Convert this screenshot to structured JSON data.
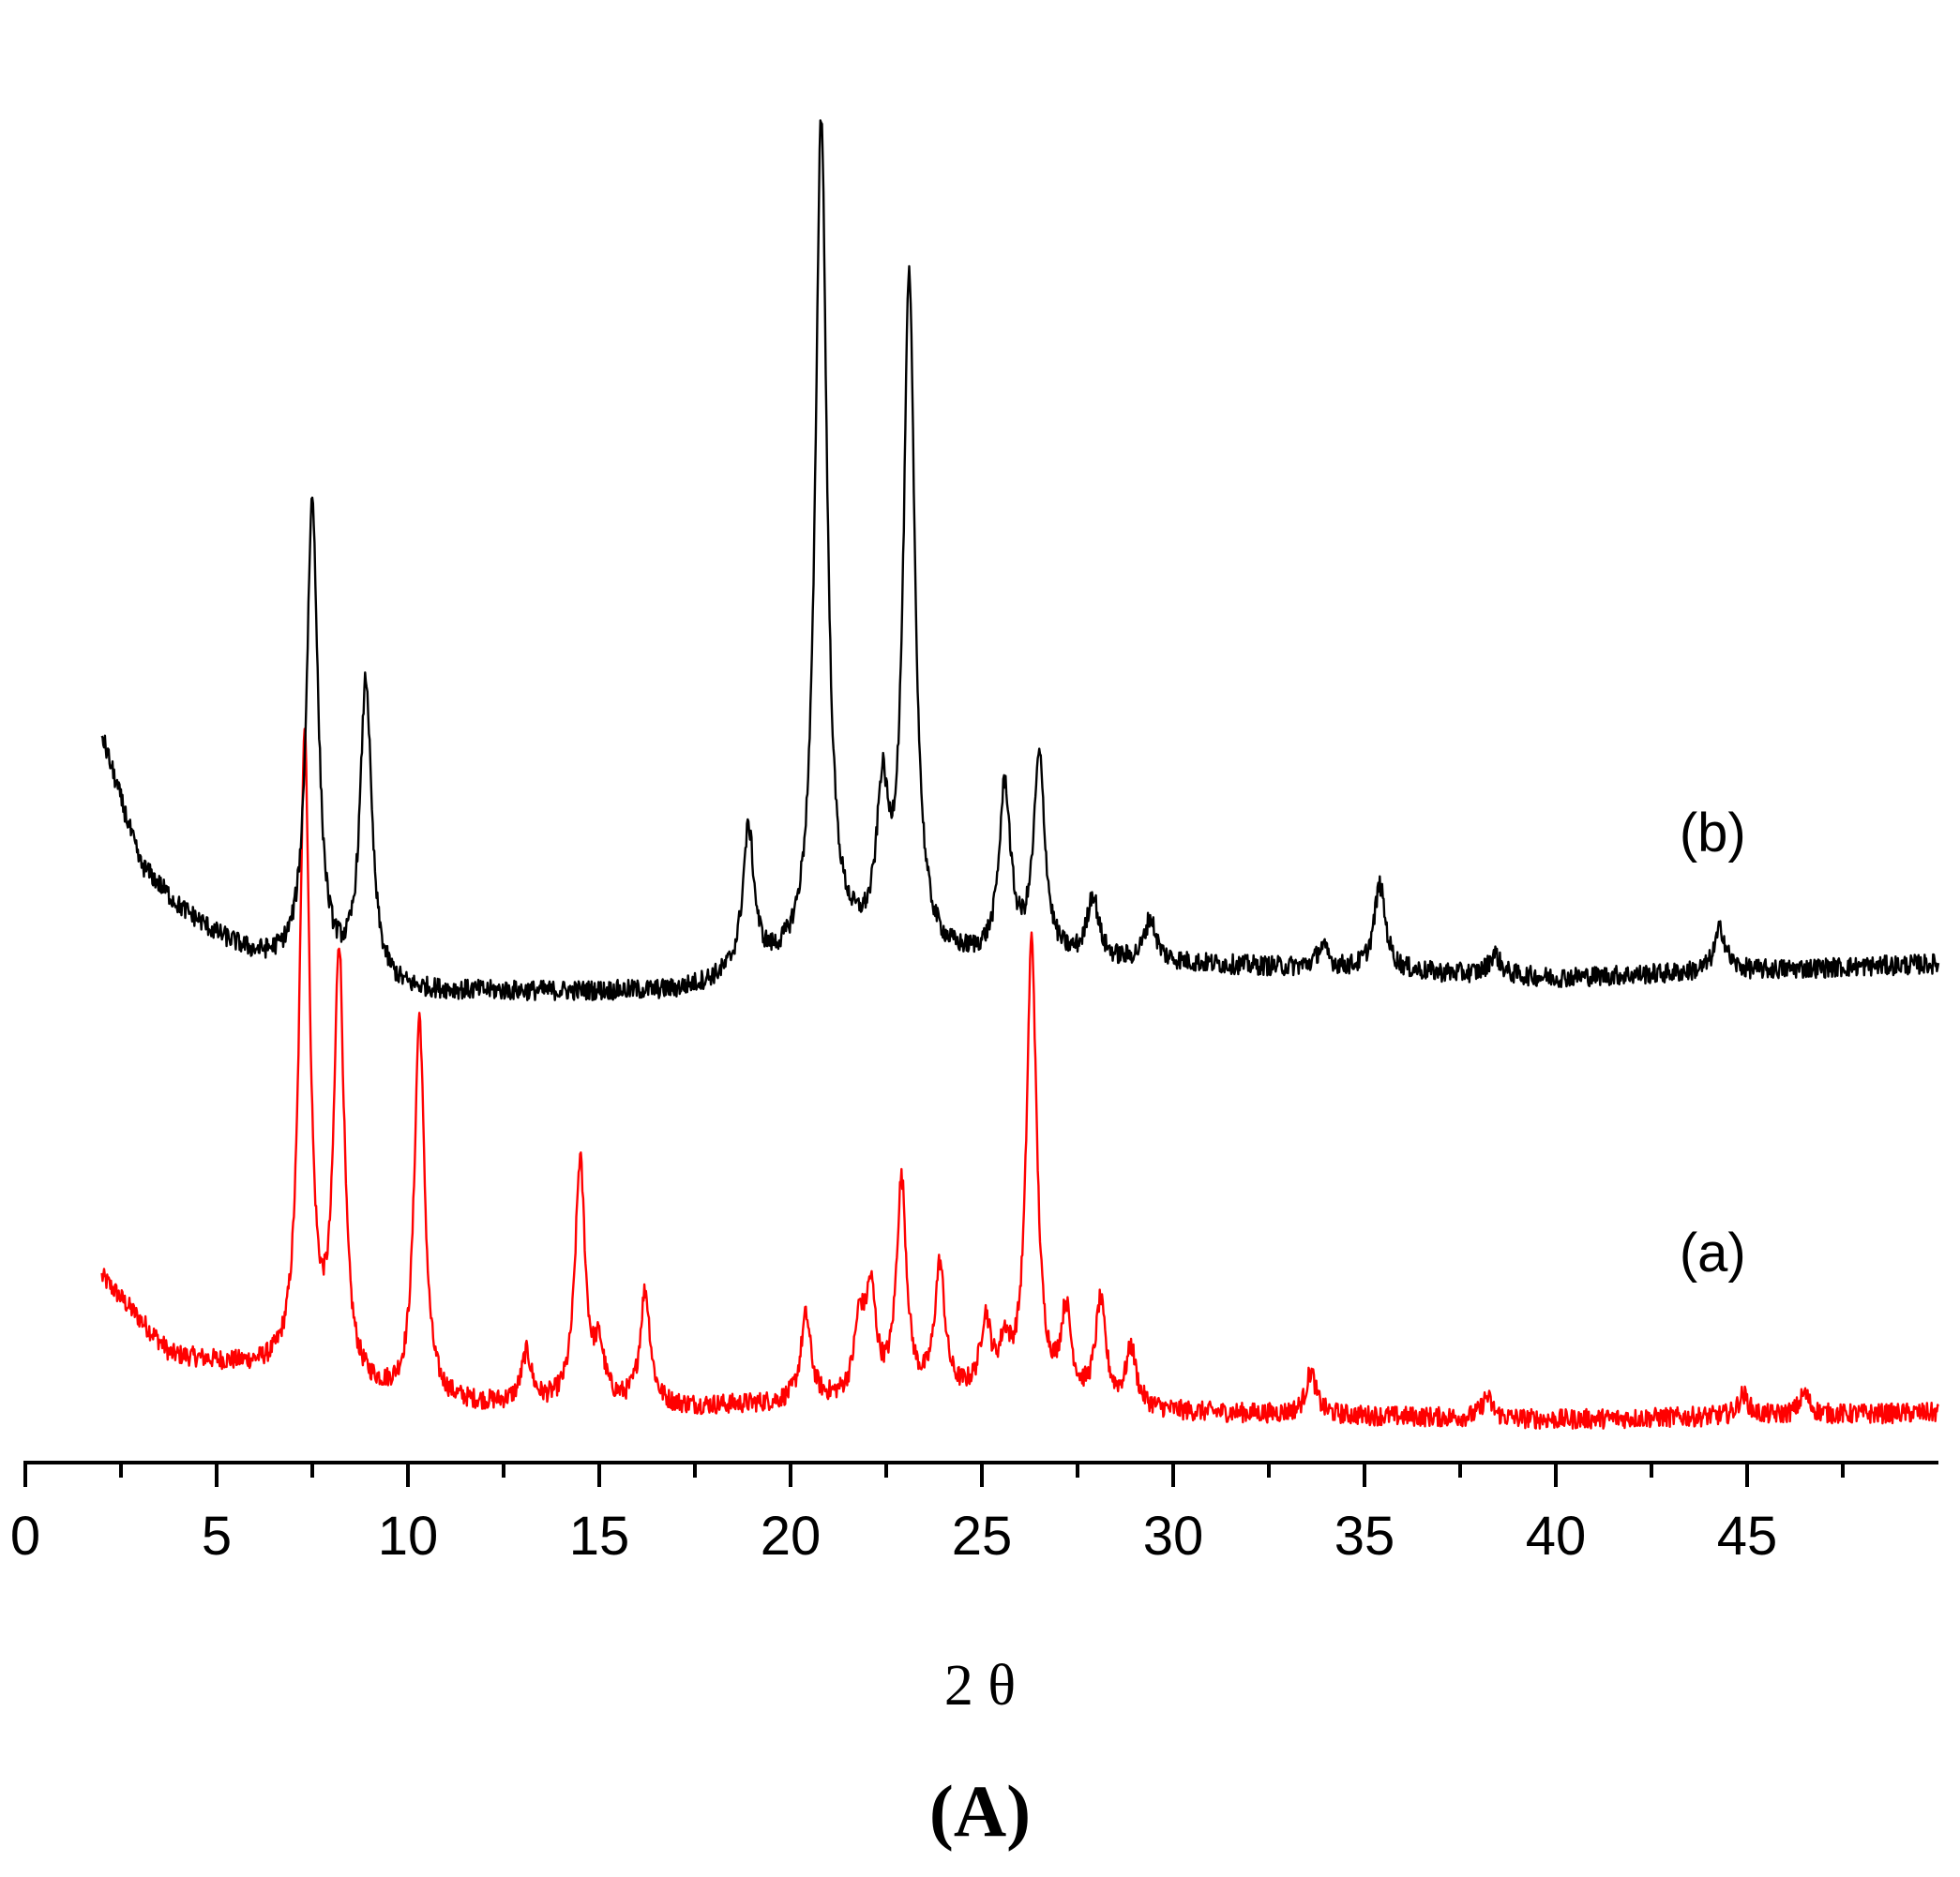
{
  "chart_data": {
    "type": "line",
    "title": "",
    "xlabel": "2 θ",
    "ylabel": "",
    "panel_label": "(A)",
    "xlim": [
      0,
      50
    ],
    "ylim": [
      0,
      100
    ],
    "x_ticks": [
      0,
      5,
      10,
      15,
      20,
      25,
      30,
      35,
      40,
      45
    ],
    "x_tick_labels": [
      "0",
      "5",
      "10",
      "15",
      "20",
      "25",
      "30",
      "35",
      "40",
      "45"
    ],
    "grid": false,
    "y_axis_visible": false,
    "series": [
      {
        "name": "(a)",
        "color": "#ff0000",
        "baseline": [
          [
            2,
            13
          ],
          [
            3.8,
            7.5
          ],
          [
            6,
            6.5
          ],
          [
            10,
            4
          ],
          [
            17,
            3.8
          ],
          [
            25,
            4.5
          ],
          [
            30,
            3.5
          ],
          [
            40,
            3
          ],
          [
            50,
            3.5
          ]
        ],
        "peaks": [
          [
            7.3,
            45
          ],
          [
            8.2,
            30
          ],
          [
            10.3,
            27
          ],
          [
            13.1,
            3.5
          ],
          [
            14.5,
            17
          ],
          [
            15.0,
            3.5
          ],
          [
            16.2,
            8
          ],
          [
            20.4,
            6
          ],
          [
            21.8,
            5
          ],
          [
            22.1,
            7
          ],
          [
            22.9,
            15
          ],
          [
            23.9,
            9
          ],
          [
            25.1,
            5
          ],
          [
            25.6,
            3
          ],
          [
            26.3,
            32
          ],
          [
            27.2,
            6
          ],
          [
            28.1,
            7
          ],
          [
            28.9,
            4
          ],
          [
            33.6,
            3
          ],
          [
            38.2,
            1.5
          ],
          [
            44.9,
            1.5
          ],
          [
            46.5,
            1.5
          ]
        ]
      },
      {
        "name": "(b)",
        "color": "#000000",
        "baseline": [
          [
            2,
            51
          ],
          [
            3,
            42
          ],
          [
            4,
            39
          ],
          [
            5,
            37
          ],
          [
            6,
            35.5
          ],
          [
            8,
            34
          ],
          [
            10,
            33
          ],
          [
            17,
            33
          ],
          [
            21.5,
            35.5
          ],
          [
            24,
            35
          ],
          [
            28,
            35
          ],
          [
            30,
            35
          ],
          [
            40,
            34
          ],
          [
            50,
            35
          ]
        ],
        "peaks": [
          [
            7.5,
            33
          ],
          [
            8.9,
            21
          ],
          [
            18.9,
            10
          ],
          [
            20.8,
            59
          ],
          [
            22.4,
            10
          ],
          [
            23.1,
            47
          ],
          [
            25.6,
            12
          ],
          [
            26.5,
            14
          ],
          [
            27.9,
            4.5
          ],
          [
            29.4,
            3
          ],
          [
            33.9,
            1.5
          ],
          [
            35.4,
            6
          ],
          [
            38.4,
            1.5
          ],
          [
            44.3,
            3
          ]
        ]
      }
    ]
  }
}
